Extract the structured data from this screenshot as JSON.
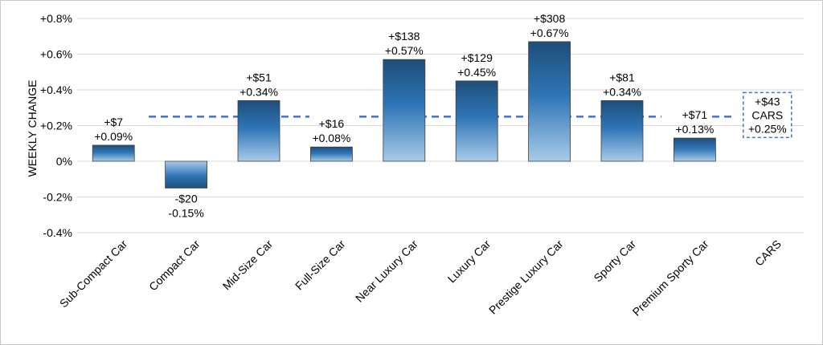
{
  "chart_data": {
    "type": "bar",
    "ylabel": "WEEKLY CHANGE",
    "ylim": [
      -0.4,
      0.8
    ],
    "yticks": [
      0.8,
      0.6,
      0.4,
      0.2,
      0,
      -0.2,
      -0.4
    ],
    "ytick_labels": [
      "+0.8%",
      "+0.6%",
      "+0.4%",
      "+0.2%",
      "0%",
      "-0.2%",
      "-0.4%"
    ],
    "grid": true,
    "categories": [
      "Sub-Compact Car",
      "Compact Car",
      "Mid-Size Car",
      "Full-Size Car",
      "Near Luxury Car",
      "Luxury Car",
      "Prestige Luxury Car",
      "Sporty Car",
      "Premium Sporty Car",
      "CARS"
    ],
    "values": [
      0.09,
      -0.15,
      0.34,
      0.08,
      0.57,
      0.45,
      0.67,
      0.34,
      0.13,
      null
    ],
    "dollar_labels": [
      "+$7",
      "-$20",
      "+$51",
      "+$16",
      "+$138",
      "+$129",
      "+$308",
      "+$81",
      "+$71",
      "+$43"
    ],
    "percent_labels": [
      "+0.09%",
      "-0.15%",
      "+0.34%",
      "+0.08%",
      "+0.57%",
      "+0.45%",
      "+0.67%",
      "+0.34%",
      "+0.13%",
      "+0.25%"
    ],
    "reference_line": {
      "value": 0.25,
      "callout_lines": [
        "+$43",
        "CARS",
        "+0.25%"
      ],
      "style": "dashed",
      "color": "#4472c4"
    },
    "colors": {
      "bar_top": "#1f4e79",
      "bar_mid": "#2e75b6",
      "bar_bottom": "#a9cbe8",
      "grid": "#d9d9d9"
    }
  }
}
